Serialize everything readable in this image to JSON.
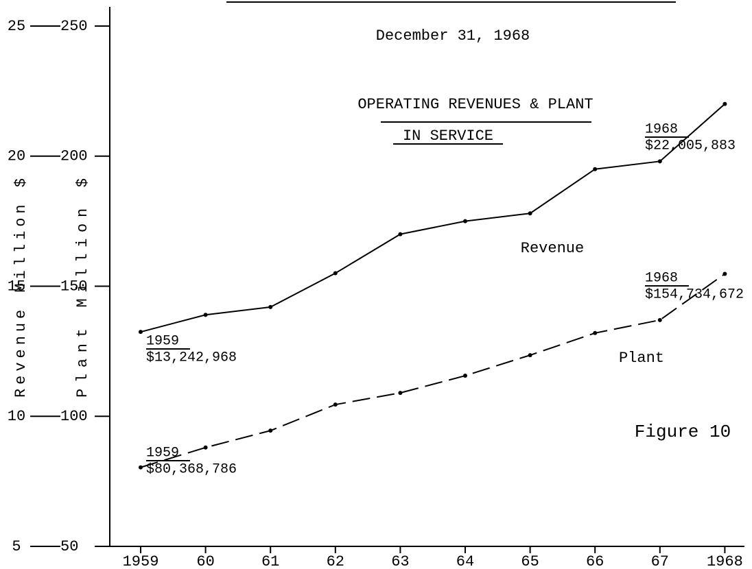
{
  "chart_data": {
    "type": "line",
    "date": "December 31, 1968",
    "title": [
      "OPERATING REVENUES & PLANT",
      "IN SERVICE"
    ],
    "annotation": "Figure 10",
    "ylabel": "Revenue Million $",
    "y2label": "Plant Million $",
    "categories": [
      "1959",
      "60",
      "61",
      "62",
      "63",
      "64",
      "65",
      "66",
      "67",
      "1968"
    ],
    "series": [
      {
        "name": "Revenue",
        "color": "#000000",
        "style": "solid",
        "axis": "y",
        "values": [
          13.242968,
          13.9,
          14.2,
          15.5,
          17.0,
          17.5,
          17.8,
          19.5,
          19.8,
          22.005883
        ],
        "value_labels": [
          "$13,242,968",
          null,
          null,
          null,
          null,
          null,
          null,
          null,
          null,
          "$22,005,883"
        ]
      },
      {
        "name": "Plant",
        "color": "#000000",
        "style": "dashed",
        "axis": "y2",
        "values": [
          80.368786,
          88,
          94.5,
          104.5,
          109,
          115.6,
          123.5,
          132,
          137,
          154.734672
        ],
        "value_labels": [
          "$80,368,786",
          null,
          null,
          null,
          null,
          null,
          null,
          null,
          null,
          "$154,734,672"
        ]
      }
    ],
    "ylim": [
      5,
      25
    ],
    "yticks": [
      5,
      10,
      15,
      20,
      25
    ],
    "y2lim": [
      50,
      250
    ],
    "y2ticks": [
      50,
      100,
      150,
      200,
      250
    ]
  }
}
